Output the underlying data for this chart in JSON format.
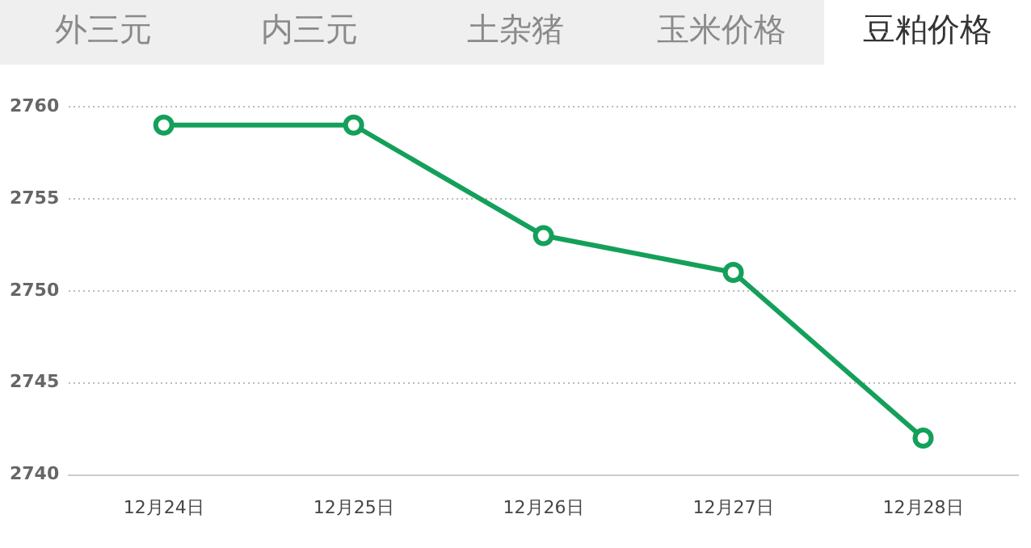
{
  "chart_data": {
    "type": "line",
    "annotations": [
      "外三元",
      "内三元",
      "土杂猪",
      "玉米价格",
      "豆粕价格"
    ],
    "categories": [
      "12月24日",
      "12月25日",
      "12月26日",
      "12月27日",
      "12月28日"
    ],
    "series": [
      {
        "color": "#14a05a",
        "values": [
          2759,
          2759,
          2753,
          2751,
          2742
        ]
      }
    ],
    "ylim": [
      2740,
      2760
    ],
    "yticks": [
      2740,
      2745,
      2750,
      2755,
      2760
    ],
    "grid": "y",
    "legend": false,
    "marker": "circle",
    "line_style": "solid"
  }
}
